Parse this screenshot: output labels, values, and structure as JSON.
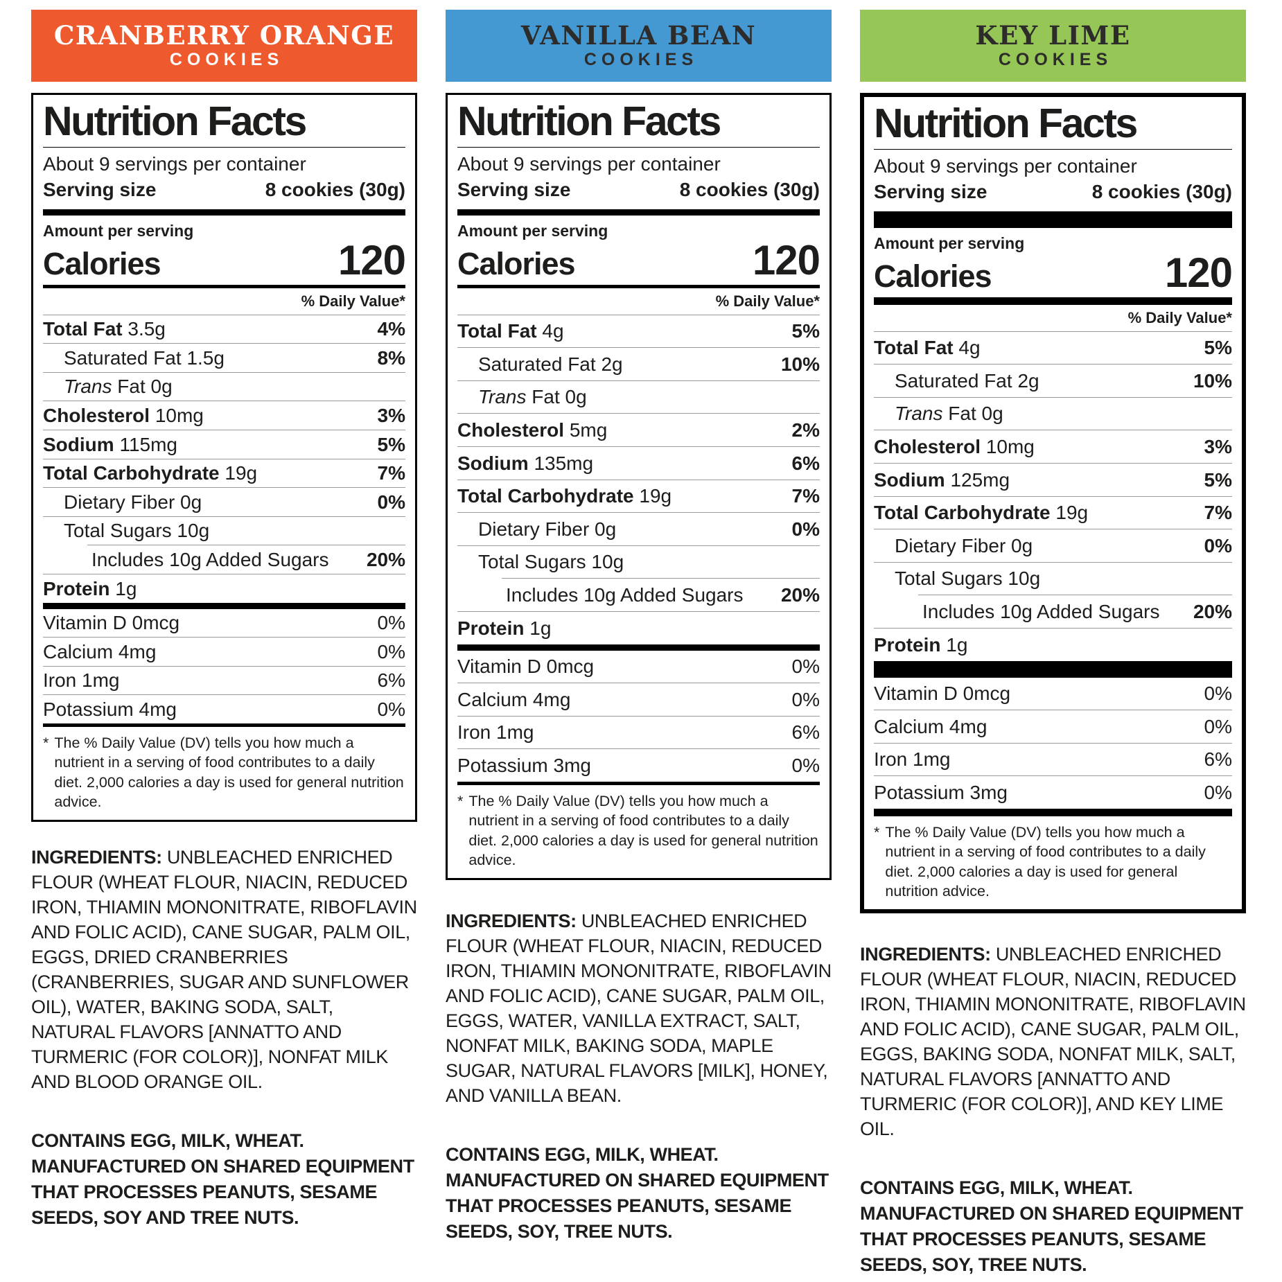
{
  "panels": [
    {
      "layout": "compact",
      "border": "thin",
      "header": {
        "title": "CRANBERRY ORANGE",
        "subtitle": "COOKIES",
        "bg": "#EE5A2E",
        "fg": "#FFFFFF"
      },
      "nutrition": {
        "title": "Nutrition Facts",
        "servings": "About 9 servings per container",
        "serving_size_label": "Serving size",
        "serving_size_value": "8 cookies (30g)",
        "amount_label": "Amount per serving",
        "calories_label": "Calories",
        "calories_value": "120",
        "dv_header": "% Daily Value*",
        "rows": [
          {
            "name": "Total Fat",
            "amount": "3.5g",
            "pct": "4%",
            "indent": 0,
            "bold_name": true,
            "bold_pct": true
          },
          {
            "name": "Saturated Fat",
            "amount": "1.5g",
            "pct": "8%",
            "indent": 1,
            "bold_name": false,
            "bold_pct": true
          },
          {
            "italic": "Trans",
            "name": "Fat",
            "amount": "0g",
            "pct": "",
            "indent": 1,
            "bold_name": false,
            "bold_pct": false
          },
          {
            "name": "Cholesterol",
            "amount": "10mg",
            "pct": "3%",
            "indent": 0,
            "bold_name": true,
            "bold_pct": true
          },
          {
            "name": "Sodium",
            "amount": "115mg",
            "pct": "5%",
            "indent": 0,
            "bold_name": true,
            "bold_pct": true
          },
          {
            "name": "Total Carbohydrate",
            "amount": "19g",
            "pct": "7%",
            "indent": 0,
            "bold_name": true,
            "bold_pct": true
          },
          {
            "name": "Dietary Fiber",
            "amount": "0g",
            "pct": "0%",
            "indent": 1,
            "bold_name": false,
            "bold_pct": true
          },
          {
            "name": "Total Sugars",
            "amount": "10g",
            "pct": "",
            "indent": 1,
            "bold_name": false,
            "bold_pct": false
          },
          {
            "name": "Includes 10g Added Sugars",
            "amount": "",
            "pct": "20%",
            "indent": 2,
            "bold_name": false,
            "bold_pct": true
          },
          {
            "name": "Protein",
            "amount": "1g",
            "pct": "",
            "indent": 0,
            "bold_name": true,
            "bold_pct": false
          }
        ],
        "vitamins": [
          {
            "name": "Vitamin D",
            "amount": "0mcg",
            "pct": "0%",
            "indent": 0,
            "bold_name": false,
            "bold_pct": false
          },
          {
            "name": "Calcium",
            "amount": "4mg",
            "pct": "0%",
            "indent": 0,
            "bold_name": false,
            "bold_pct": false
          },
          {
            "name": "Iron",
            "amount": "1mg",
            "pct": "6%",
            "indent": 0,
            "bold_name": false,
            "bold_pct": false
          },
          {
            "name": "Potassium",
            "amount": "4mg",
            "pct": "0%",
            "indent": 0,
            "bold_name": false,
            "bold_pct": false
          }
        ],
        "footnote_star": "*",
        "footnote": "The % Daily Value (DV) tells you how much a nutrient in a serving of food contributes to a daily diet. 2,000 calories a day is used for general nutrition advice."
      },
      "ingredients_label": "INGREDIENTS:",
      "ingredients": "UNBLEACHED ENRICHED FLOUR (WHEAT FLOUR, NIACIN, REDUCED IRON, THIAMIN MONONITRATE, RIBOFLAVIN AND FOLIC ACID), CANE SUGAR, PALM OIL, EGGS, DRIED CRANBERRIES (CRANBERRIES, SUGAR AND SUNFLOWER OIL), WATER, BAKING SODA, SALT, NATURAL FLAVORS [ANNATTO AND TURMERIC (FOR COLOR)], NONFAT MILK AND BLOOD ORANGE OIL.",
      "contains_line1": "CONTAINS EGG, MILK, WHEAT.",
      "contains_line2": "MANUFACTURED ON SHARED EQUIPMENT THAT PROCESSES PEANUTS, SESAME SEEDS, SOY AND TREE NUTS."
    },
    {
      "layout": "regular",
      "border": "thin",
      "header": {
        "title": "VANILLA BEAN",
        "subtitle": "COOKIES",
        "bg": "#4499D3",
        "fg": "#2D2C2A"
      },
      "nutrition": {
        "title": "Nutrition Facts",
        "servings": "About 9 servings per container",
        "serving_size_label": "Serving size",
        "serving_size_value": "8 cookies (30g)",
        "amount_label": "Amount per serving",
        "calories_label": "Calories",
        "calories_value": "120",
        "dv_header": "% Daily Value*",
        "rows": [
          {
            "name": "Total Fat",
            "amount": "4g",
            "pct": "5%",
            "indent": 0,
            "bold_name": true,
            "bold_pct": true
          },
          {
            "name": "Saturated Fat",
            "amount": "2g",
            "pct": "10%",
            "indent": 1,
            "bold_name": false,
            "bold_pct": true
          },
          {
            "italic": "Trans",
            "name": "Fat",
            "amount": "0g",
            "pct": "",
            "indent": 1,
            "bold_name": false,
            "bold_pct": false
          },
          {
            "name": "Cholesterol",
            "amount": "5mg",
            "pct": "2%",
            "indent": 0,
            "bold_name": true,
            "bold_pct": true
          },
          {
            "name": "Sodium",
            "amount": "135mg",
            "pct": "6%",
            "indent": 0,
            "bold_name": true,
            "bold_pct": true
          },
          {
            "name": "Total Carbohydrate",
            "amount": "19g",
            "pct": "7%",
            "indent": 0,
            "bold_name": true,
            "bold_pct": true
          },
          {
            "name": "Dietary Fiber",
            "amount": "0g",
            "pct": "0%",
            "indent": 1,
            "bold_name": false,
            "bold_pct": true
          },
          {
            "name": "Total Sugars",
            "amount": "10g",
            "pct": "",
            "indent": 1,
            "bold_name": false,
            "bold_pct": false
          },
          {
            "name": "Includes 10g Added Sugars",
            "amount": "",
            "pct": "20%",
            "indent": 2,
            "bold_name": false,
            "bold_pct": true
          },
          {
            "name": "Protein",
            "amount": "1g",
            "pct": "",
            "indent": 0,
            "bold_name": true,
            "bold_pct": false
          }
        ],
        "vitamins": [
          {
            "name": "Vitamin D",
            "amount": "0mcg",
            "pct": "0%",
            "indent": 0,
            "bold_name": false,
            "bold_pct": false
          },
          {
            "name": "Calcium",
            "amount": "4mg",
            "pct": "0%",
            "indent": 0,
            "bold_name": false,
            "bold_pct": false
          },
          {
            "name": "Iron",
            "amount": "1mg",
            "pct": "6%",
            "indent": 0,
            "bold_name": false,
            "bold_pct": false
          },
          {
            "name": "Potassium",
            "amount": "3mg",
            "pct": "0%",
            "indent": 0,
            "bold_name": false,
            "bold_pct": false
          }
        ],
        "footnote_star": "*",
        "footnote": "The % Daily Value (DV) tells you how much a nutrient in a serving of food contributes to a daily diet. 2,000 calories a day is used for general nutrition advice."
      },
      "ingredients_label": "INGREDIENTS:",
      "ingredients": "UNBLEACHED ENRICHED FLOUR (WHEAT FLOUR, NIACIN, REDUCED IRON, THIAMIN MONONITRATE, RIBOFLAVIN AND FOLIC ACID), CANE SUGAR, PALM OIL, EGGS, WATER, VANILLA EXTRACT, SALT, NONFAT MILK, BAKING SODA, MAPLE SUGAR, NATURAL FLAVORS [MILK], HONEY, AND VANILLA BEAN.",
      "contains_line1": "CONTAINS EGG, MILK, WHEAT.",
      "contains_line2": "MANUFACTURED ON SHARED EQUIPMENT THAT PROCESSES PEANUTS, SESAME SEEDS, SOY, TREE NUTS."
    },
    {
      "layout": "regular",
      "border": "thick",
      "header": {
        "title": "KEY LIME",
        "subtitle": "COOKIES",
        "bg": "#95C656",
        "fg": "#2D2C2A"
      },
      "nutrition": {
        "title": "Nutrition Facts",
        "servings": "About 9 servings per container",
        "serving_size_label": "Serving size",
        "serving_size_value": "8 cookies (30g)",
        "amount_label": "Amount per serving",
        "calories_label": "Calories",
        "calories_value": "120",
        "dv_header": "% Daily Value*",
        "rows": [
          {
            "name": "Total Fat",
            "amount": "4g",
            "pct": "5%",
            "indent": 0,
            "bold_name": true,
            "bold_pct": true
          },
          {
            "name": "Saturated Fat",
            "amount": "2g",
            "pct": "10%",
            "indent": 1,
            "bold_name": false,
            "bold_pct": true
          },
          {
            "italic": "Trans",
            "name": "Fat",
            "amount": "0g",
            "pct": "",
            "indent": 1,
            "bold_name": false,
            "bold_pct": false
          },
          {
            "name": "Cholesterol",
            "amount": "10mg",
            "pct": "3%",
            "indent": 0,
            "bold_name": true,
            "bold_pct": true
          },
          {
            "name": "Sodium",
            "amount": "125mg",
            "pct": "5%",
            "indent": 0,
            "bold_name": true,
            "bold_pct": true
          },
          {
            "name": "Total Carbohydrate",
            "amount": "19g",
            "pct": "7%",
            "indent": 0,
            "bold_name": true,
            "bold_pct": true
          },
          {
            "name": "Dietary Fiber",
            "amount": "0g",
            "pct": "0%",
            "indent": 1,
            "bold_name": false,
            "bold_pct": true
          },
          {
            "name": "Total Sugars",
            "amount": "10g",
            "pct": "",
            "indent": 1,
            "bold_name": false,
            "bold_pct": false
          },
          {
            "name": "Includes 10g Added Sugars",
            "amount": "",
            "pct": "20%",
            "indent": 2,
            "bold_name": false,
            "bold_pct": true
          },
          {
            "name": "Protein",
            "amount": "1g",
            "pct": "",
            "indent": 0,
            "bold_name": true,
            "bold_pct": false
          }
        ],
        "vitamins": [
          {
            "name": "Vitamin D",
            "amount": "0mcg",
            "pct": "0%",
            "indent": 0,
            "bold_name": false,
            "bold_pct": false
          },
          {
            "name": "Calcium",
            "amount": "4mg",
            "pct": "0%",
            "indent": 0,
            "bold_name": false,
            "bold_pct": false
          },
          {
            "name": "Iron",
            "amount": "1mg",
            "pct": "6%",
            "indent": 0,
            "bold_name": false,
            "bold_pct": false
          },
          {
            "name": "Potassium",
            "amount": "3mg",
            "pct": "0%",
            "indent": 0,
            "bold_name": false,
            "bold_pct": false
          }
        ],
        "footnote_star": "*",
        "footnote": "The % Daily Value (DV) tells you how much a nutrient in a serving of food contributes to a daily diet. 2,000 calories a day is used for general nutrition advice."
      },
      "ingredients_label": "INGREDIENTS:",
      "ingredients": "UNBLEACHED ENRICHED FLOUR (WHEAT FLOUR, NIACIN, REDUCED IRON, THIAMIN MONONITRATE, RIBOFLAVIN AND FOLIC ACID), CANE SUGAR, PALM OIL, EGGS, BAKING SODA, NONFAT MILK, SALT, NATURAL FLAVORS [ANNATTO AND TURMERIC (FOR COLOR)], AND KEY LIME OIL.",
      "contains_line1": "CONTAINS EGG, MILK, WHEAT.",
      "contains_line2": "MANUFACTURED ON SHARED EQUIPMENT THAT PROCESSES PEANUTS, SESAME SEEDS, SOY, TREE NUTS."
    }
  ]
}
